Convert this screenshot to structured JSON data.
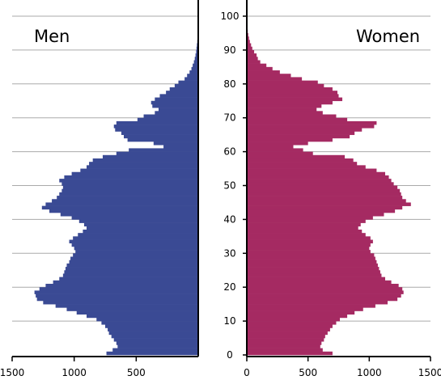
{
  "chart_data": {
    "type": "bar",
    "subtype": "population-pyramid",
    "orientation": "horizontal",
    "title": "",
    "xlabel": "",
    "ylabel": "",
    "left_label": "Men",
    "right_label": "Women",
    "x_ticks": [
      1500,
      1000,
      500,
      0,
      500,
      1000,
      1500
    ],
    "age_ticks": [
      0,
      10,
      20,
      30,
      40,
      50,
      60,
      70,
      80,
      90,
      100
    ],
    "age_range": [
      0,
      100
    ],
    "value_range": [
      0,
      1500
    ],
    "grid": true,
    "colors": {
      "men": "#3a4a94",
      "women": "#a52a62"
    },
    "ages": [
      0,
      1,
      2,
      3,
      4,
      5,
      6,
      7,
      8,
      9,
      10,
      11,
      12,
      13,
      14,
      15,
      16,
      17,
      18,
      19,
      20,
      21,
      22,
      23,
      24,
      25,
      26,
      27,
      28,
      29,
      30,
      31,
      32,
      33,
      34,
      35,
      36,
      37,
      38,
      39,
      40,
      41,
      42,
      43,
      44,
      45,
      46,
      47,
      48,
      49,
      50,
      51,
      52,
      53,
      54,
      55,
      56,
      57,
      58,
      59,
      60,
      61,
      62,
      63,
      64,
      65,
      66,
      67,
      68,
      69,
      70,
      71,
      72,
      73,
      74,
      75,
      76,
      77,
      78,
      79,
      80,
      81,
      82,
      83,
      84,
      85,
      86,
      87,
      88,
      89,
      90,
      91,
      92,
      93,
      94,
      95,
      96,
      97,
      98,
      99,
      100
    ],
    "series": [
      {
        "name": "Men",
        "values": [
          740,
          690,
          650,
          660,
          680,
          700,
          720,
          730,
          750,
          780,
          820,
          900,
          980,
          1060,
          1150,
          1250,
          1300,
          1310,
          1320,
          1280,
          1230,
          1170,
          1120,
          1090,
          1080,
          1070,
          1060,
          1040,
          1030,
          1010,
          990,
          1000,
          1020,
          1040,
          1010,
          970,
          930,
          900,
          920,
          960,
          1020,
          1110,
          1200,
          1260,
          1230,
          1180,
          1140,
          1120,
          1100,
          1090,
          1100,
          1120,
          1080,
          1020,
          950,
          900,
          880,
          850,
          770,
          660,
          560,
          280,
          360,
          570,
          600,
          620,
          670,
          680,
          660,
          490,
          440,
          350,
          320,
          370,
          380,
          350,
          310,
          260,
          230,
          190,
          160,
          110,
          90,
          70,
          55,
          45,
          35,
          28,
          22,
          17,
          14,
          11,
          8,
          6,
          5,
          4,
          3,
          2,
          2,
          1,
          1
        ]
      },
      {
        "name": "Women",
        "values": [
          700,
          620,
          600,
          610,
          630,
          640,
          660,
          680,
          700,
          730,
          760,
          820,
          880,
          950,
          1050,
          1150,
          1230,
          1260,
          1280,
          1270,
          1240,
          1180,
          1130,
          1100,
          1090,
          1080,
          1070,
          1060,
          1050,
          1040,
          1010,
          1000,
          1010,
          1030,
          1010,
          970,
          940,
          910,
          930,
          970,
          1030,
          1120,
          1210,
          1270,
          1340,
          1300,
          1270,
          1260,
          1250,
          1230,
          1200,
          1180,
          1160,
          1130,
          1060,
          970,
          900,
          870,
          800,
          540,
          460,
          380,
          500,
          700,
          840,
          880,
          940,
          1040,
          1060,
          820,
          730,
          620,
          570,
          610,
          700,
          780,
          750,
          740,
          700,
          630,
          580,
          450,
          360,
          270,
          210,
          160,
          110,
          90,
          80,
          60,
          45,
          35,
          25,
          18,
          12,
          8,
          6,
          4,
          3,
          2,
          1
        ]
      }
    ]
  }
}
